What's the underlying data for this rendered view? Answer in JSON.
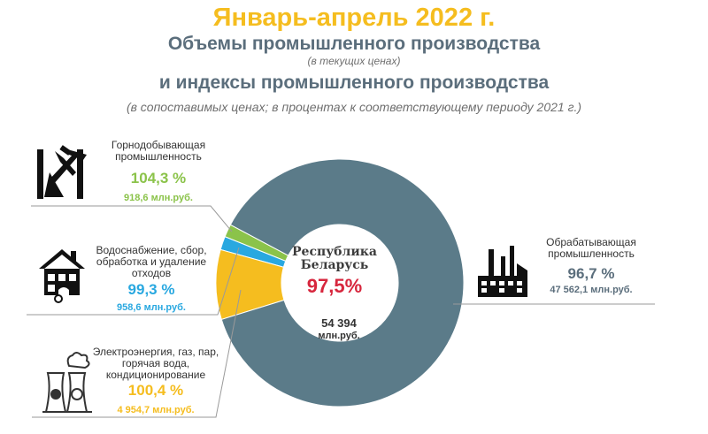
{
  "header": {
    "title": "Январь-апрель 2022 г.",
    "subtitle1": "Объемы промышленного производства",
    "subtitle1_note": "(в текущих ценах)",
    "subtitle2": "и индексы промышленного производства",
    "subtitle2_note": "(в сопоставимых ценах; в процентах к соответствующему периоду 2021 г.)"
  },
  "center": {
    "title_line1": "Республика",
    "title_line2": "Беларусь",
    "index": "97,5%",
    "total_line1": "54 394",
    "total_line2": "млн.руб."
  },
  "segments": {
    "mining": {
      "label_line1": "Горнодобывающая",
      "label_line2": "промышленность",
      "index": "104,3 %",
      "volume": "918,6 млн.руб."
    },
    "water": {
      "label_line1": "Водоснабжение, сбор,",
      "label_line2": "обработка и удаление",
      "label_line3": "отходов",
      "index": "99,3 %",
      "volume": "958,6 млн.руб."
    },
    "energy": {
      "label_line1": "Электроэнергия, газ, пар,",
      "label_line2": "горячая вода,",
      "label_line3": "кондиционирование",
      "index": "100,4 %",
      "volume": "4 954,7 млн.руб."
    },
    "manufacturing": {
      "label_line1": "Обрабатывающая",
      "label_line2": "промышленность",
      "index": "96,7 %",
      "volume": "47 562,1 млн.руб."
    }
  },
  "chart_data": {
    "type": "pie",
    "donut": true,
    "categories": [
      "Обрабатывающая промышленность",
      "Горнодобывающая промышленность",
      "Водоснабжение, сбор, обработка и удаление отходов",
      "Электроэнергия, газ, пар, горячая вода, кондиционирование"
    ],
    "values": [
      47562.1,
      918.6,
      958.6,
      4954.7
    ],
    "indices": [
      96.7,
      104.3,
      99.3,
      100.4
    ],
    "total": 54394,
    "total_index": 97.5,
    "colors": [
      "#5b7b89",
      "#8bc34a",
      "#29a8e0",
      "#f5bd1f"
    ]
  }
}
